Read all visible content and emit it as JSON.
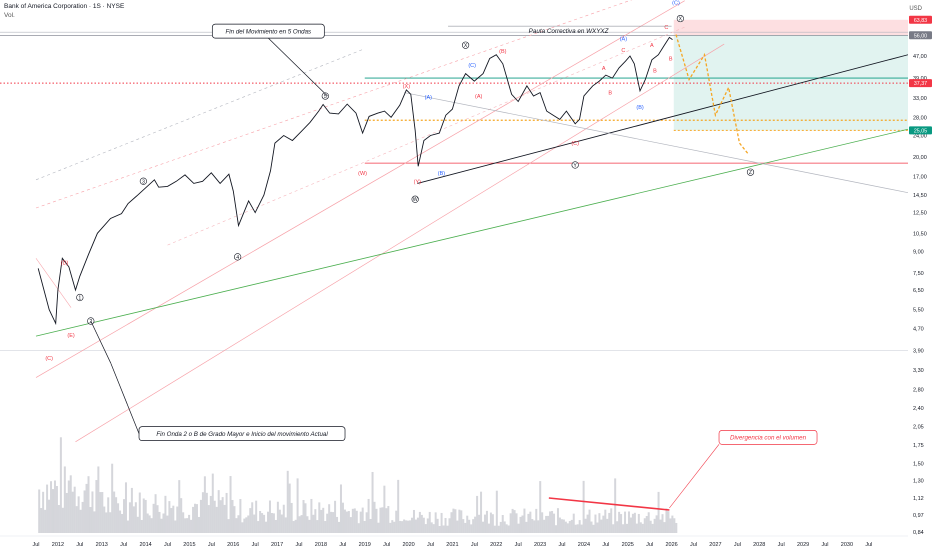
{
  "header": {
    "symbol_line": "Bank of America Corporation · 1S · NYSE",
    "volume_label": "Vol.",
    "currency": "USD"
  },
  "chart_data": {
    "type": "line",
    "title": "",
    "y_scale": "log",
    "ylim": [
      0.84,
      70
    ],
    "x_range": [
      2011.5,
      2030.8
    ],
    "y_tick_labels": [
      "47,00",
      "39,00",
      "33,00",
      "28,00",
      "24,00",
      "20,00",
      "17,00",
      "14,50",
      "12,50",
      "10,50",
      "9,00",
      "7,50",
      "6,50",
      "5,50",
      "4,70",
      "3,90",
      "3,30",
      "2,80",
      "2,40",
      "2,05",
      "1,75",
      "1,50",
      "1,30",
      "1,12",
      "0,97",
      "0,84"
    ],
    "y_ticks": [
      47,
      39,
      33,
      28,
      24,
      20,
      17,
      14.5,
      12.5,
      10.5,
      9,
      7.5,
      6.5,
      5.5,
      4.7,
      3.9,
      3.3,
      2.8,
      2.4,
      2.05,
      1.75,
      1.5,
      1.3,
      1.12,
      0.97,
      0.84
    ],
    "x_ticks": [
      {
        "label": "Jul",
        "t": 2011.5
      },
      {
        "label": "2012",
        "t": 2012
      },
      {
        "label": "Jul",
        "t": 2012.5
      },
      {
        "label": "2013",
        "t": 2013
      },
      {
        "label": "Jul",
        "t": 2013.5
      },
      {
        "label": "2014",
        "t": 2014
      },
      {
        "label": "Jul",
        "t": 2014.5
      },
      {
        "label": "2015",
        "t": 2015
      },
      {
        "label": "Jul",
        "t": 2015.5
      },
      {
        "label": "2016",
        "t": 2016
      },
      {
        "label": "Jul",
        "t": 2016.5
      },
      {
        "label": "2017",
        "t": 2017
      },
      {
        "label": "Jul",
        "t": 2017.5
      },
      {
        "label": "2018",
        "t": 2018
      },
      {
        "label": "Jul",
        "t": 2018.5
      },
      {
        "label": "2019",
        "t": 2019
      },
      {
        "label": "Jul",
        "t": 2019.5
      },
      {
        "label": "2020",
        "t": 2020
      },
      {
        "label": "Jul",
        "t": 2020.5
      },
      {
        "label": "2021",
        "t": 2021
      },
      {
        "label": "Jul",
        "t": 2021.5
      },
      {
        "label": "2022",
        "t": 2022
      },
      {
        "label": "Jul",
        "t": 2022.5
      },
      {
        "label": "2023",
        "t": 2023
      },
      {
        "label": "Jul",
        "t": 2023.5
      },
      {
        "label": "2024",
        "t": 2024
      },
      {
        "label": "Jul",
        "t": 2024.5
      },
      {
        "label": "2025",
        "t": 2025
      },
      {
        "label": "Jul",
        "t": 2025.5
      },
      {
        "label": "2026",
        "t": 2026
      },
      {
        "label": "Jul",
        "t": 2026.5
      },
      {
        "label": "2027",
        "t": 2027
      },
      {
        "label": "Jul",
        "t": 2027.5
      },
      {
        "label": "2028",
        "t": 2028
      },
      {
        "label": "Jul",
        "t": 2028.5
      },
      {
        "label": "2029",
        "t": 2029
      },
      {
        "label": "Jul",
        "t": 2029.5
      },
      {
        "label": "2030",
        "t": 2030
      },
      {
        "label": "Jul",
        "t": 2030.5
      }
    ],
    "series": [
      {
        "price_path": [
          [
            2011.55,
            7.8
          ],
          [
            2011.8,
            5.5
          ],
          [
            2011.95,
            4.9
          ],
          [
            2012.0,
            6.5
          ],
          [
            2012.1,
            8.5
          ],
          [
            2012.25,
            7.9
          ],
          [
            2012.4,
            6.5
          ],
          [
            2012.5,
            7.3
          ],
          [
            2012.7,
            8.8
          ],
          [
            2012.9,
            10.5
          ],
          [
            2013.2,
            11.9
          ],
          [
            2013.45,
            12.4
          ],
          [
            2013.6,
            13.5
          ],
          [
            2013.8,
            14.4
          ],
          [
            2014.2,
            16.5
          ],
          [
            2014.3,
            15.5
          ],
          [
            2014.5,
            15.6
          ],
          [
            2014.7,
            16.3
          ],
          [
            2014.9,
            17.2
          ],
          [
            2015.1,
            16.0
          ],
          [
            2015.3,
            16.3
          ],
          [
            2015.5,
            17.5
          ],
          [
            2015.7,
            16.0
          ],
          [
            2015.9,
            17.3
          ],
          [
            2016.0,
            15.0
          ],
          [
            2016.12,
            11.2
          ],
          [
            2016.35,
            13.8
          ],
          [
            2016.5,
            12.5
          ],
          [
            2016.7,
            14.5
          ],
          [
            2016.85,
            17.8
          ],
          [
            2016.95,
            22.5
          ],
          [
            2017.15,
            24.0
          ],
          [
            2017.35,
            23.0
          ],
          [
            2017.55,
            24.8
          ],
          [
            2017.75,
            26.8
          ],
          [
            2017.95,
            29.5
          ],
          [
            2018.05,
            31.2
          ],
          [
            2018.2,
            29.0
          ],
          [
            2018.4,
            28.8
          ],
          [
            2018.6,
            31.3
          ],
          [
            2018.8,
            29.0
          ],
          [
            2018.95,
            24.5
          ],
          [
            2019.1,
            28.2
          ],
          [
            2019.3,
            29.0
          ],
          [
            2019.45,
            29.5
          ],
          [
            2019.6,
            28.0
          ],
          [
            2019.8,
            31.0
          ],
          [
            2019.95,
            35.3
          ],
          [
            2020.05,
            34.0
          ],
          [
            2020.15,
            25.0
          ],
          [
            2020.22,
            18.5
          ],
          [
            2020.35,
            23.0
          ],
          [
            2020.5,
            24.0
          ],
          [
            2020.7,
            24.5
          ],
          [
            2020.85,
            28.5
          ],
          [
            2021.0,
            30.0
          ],
          [
            2021.15,
            36.5
          ],
          [
            2021.3,
            40.5
          ],
          [
            2021.5,
            38.0
          ],
          [
            2021.7,
            40.5
          ],
          [
            2021.85,
            46.0
          ],
          [
            2022.0,
            47.5
          ],
          [
            2022.15,
            44.0
          ],
          [
            2022.35,
            34.0
          ],
          [
            2022.5,
            32.0
          ],
          [
            2022.7,
            36.5
          ],
          [
            2022.85,
            33.5
          ],
          [
            2023.0,
            34.5
          ],
          [
            2023.15,
            29.5
          ],
          [
            2023.3,
            28.5
          ],
          [
            2023.45,
            27.5
          ],
          [
            2023.6,
            29.5
          ],
          [
            2023.8,
            26.5
          ],
          [
            2023.9,
            27.5
          ],
          [
            2024.0,
            33.5
          ],
          [
            2024.2,
            36.5
          ],
          [
            2024.35,
            38.0
          ],
          [
            2024.5,
            40.0
          ],
          [
            2024.65,
            39.0
          ],
          [
            2024.8,
            42.5
          ],
          [
            2024.95,
            45.0
          ],
          [
            2025.05,
            47.0
          ],
          [
            2025.15,
            44.0
          ],
          [
            2025.28,
            35.0
          ],
          [
            2025.4,
            38.5
          ],
          [
            2025.55,
            45.5
          ],
          [
            2025.7,
            47.5
          ],
          [
            2025.82,
            51.0
          ],
          [
            2025.95,
            55.0
          ],
          [
            2026.02,
            54.0
          ]
        ]
      }
    ],
    "projection_path": [
      [
        2026.1,
        56.3
      ],
      [
        2026.4,
        38.5
      ],
      [
        2026.75,
        47.5
      ],
      [
        2027.0,
        28.5
      ],
      [
        2027.3,
        36.0
      ],
      [
        2027.55,
        22.5
      ],
      [
        2027.75,
        20.5
      ]
    ],
    "levels": [
      {
        "label": "63,83",
        "value": 63.83,
        "color": "#f23645"
      },
      {
        "label": "56,00",
        "value": 56.0,
        "color": "#787b86"
      },
      {
        "label": "37,37",
        "value": 37.37,
        "color": "#f23645"
      },
      {
        "label": "25,05",
        "value": 25.05,
        "color": "#089981"
      }
    ],
    "annotations": [
      {
        "text": "Fin del Movimiento en 5 Ondas",
        "t": 2016.8,
        "v": 58
      },
      {
        "text": "Pauta Correctiva en WXYXZ",
        "t": 2023.65,
        "v": 58
      },
      {
        "text": "Fin Onda 2 o B de Grado Mayor e Inicio del movimiento Actual",
        "t": 2016.2,
        "v": 1.93
      },
      {
        "text": "Divergencia con el volumen",
        "t": 2028.2,
        "v": 1.87
      }
    ],
    "wave_labels": [
      {
        "text": "(D)",
        "t": 2012.15,
        "v": 8.2,
        "color": "#f23645"
      },
      {
        "text": "(C)",
        "t": 2011.8,
        "v": 3.65,
        "color": "#f23645"
      },
      {
        "text": "(E)",
        "t": 2012.3,
        "v": 4.45,
        "color": "#f23645"
      },
      {
        "text": "1",
        "t": 2012.5,
        "v": 6.1,
        "color": "#131722",
        "circle": true
      },
      {
        "text": "2",
        "t": 2012.75,
        "v": 5.0,
        "color": "#131722",
        "circle": true
      },
      {
        "text": "3",
        "t": 2013.95,
        "v": 16.3,
        "color": "#131722",
        "circle": true
      },
      {
        "text": "4",
        "t": 2016.1,
        "v": 8.6,
        "color": "#131722",
        "circle": true
      },
      {
        "text": "5",
        "t": 2018.1,
        "v": 33.5,
        "color": "#131722",
        "circle": true
      },
      {
        "text": "(W)",
        "t": 2018.95,
        "v": 17.5,
        "color": "#f23645"
      },
      {
        "text": "(X)",
        "t": 2019.95,
        "v": 36.5,
        "color": "#f23645"
      },
      {
        "text": "(Y)",
        "t": 2020.2,
        "v": 16.3,
        "color": "#f23645"
      },
      {
        "text": "W",
        "t": 2020.15,
        "v": 14.0,
        "color": "#131722",
        "circle": true
      },
      {
        "text": "(A)",
        "t": 2020.45,
        "v": 33.2,
        "color": "#2962ff"
      },
      {
        "text": "(B)",
        "t": 2020.75,
        "v": 17.5,
        "color": "#2962ff"
      },
      {
        "text": "X",
        "t": 2021.3,
        "v": 51.5,
        "color": "#131722",
        "circle": true
      },
      {
        "text": "(C)",
        "t": 2021.45,
        "v": 43.5,
        "color": "#2962ff"
      },
      {
        "text": "(A)",
        "t": 2021.6,
        "v": 33.5,
        "color": "#f23645"
      },
      {
        "text": "(B)",
        "t": 2022.15,
        "v": 49.0,
        "color": "#f23645"
      },
      {
        "text": "(C)",
        "t": 2023.8,
        "v": 22.5,
        "color": "#f23645"
      },
      {
        "text": "Y",
        "t": 2023.8,
        "v": 18.7,
        "color": "#131722",
        "circle": true
      },
      {
        "text": "A",
        "t": 2024.45,
        "v": 42.5,
        "color": "#f23645"
      },
      {
        "text": "B",
        "t": 2024.6,
        "v": 34.5,
        "color": "#f23645"
      },
      {
        "text": "C",
        "t": 2024.9,
        "v": 49.5,
        "color": "#f23645"
      },
      {
        "text": "(A)",
        "t": 2024.9,
        "v": 54.5,
        "color": "#2962ff"
      },
      {
        "text": "(B)",
        "t": 2025.28,
        "v": 30.5,
        "color": "#2962ff"
      },
      {
        "text": "A",
        "t": 2025.55,
        "v": 51.5,
        "color": "#f23645"
      },
      {
        "text": "B",
        "t": 2025.62,
        "v": 41.5,
        "color": "#f23645"
      },
      {
        "text": "C",
        "t": 2025.88,
        "v": 60.0,
        "color": "#f23645"
      },
      {
        "text": "B",
        "t": 2025.98,
        "v": 46.0,
        "color": "#f23645"
      },
      {
        "text": "(C)",
        "t": 2026.1,
        "v": 74.0,
        "color": "#2962ff"
      },
      {
        "text": "X",
        "t": 2026.2,
        "v": 64.5,
        "color": "#131722",
        "circle": true
      },
      {
        "text": "Z",
        "t": 2027.8,
        "v": 17.6,
        "color": "#131722",
        "circle": true
      }
    ]
  }
}
